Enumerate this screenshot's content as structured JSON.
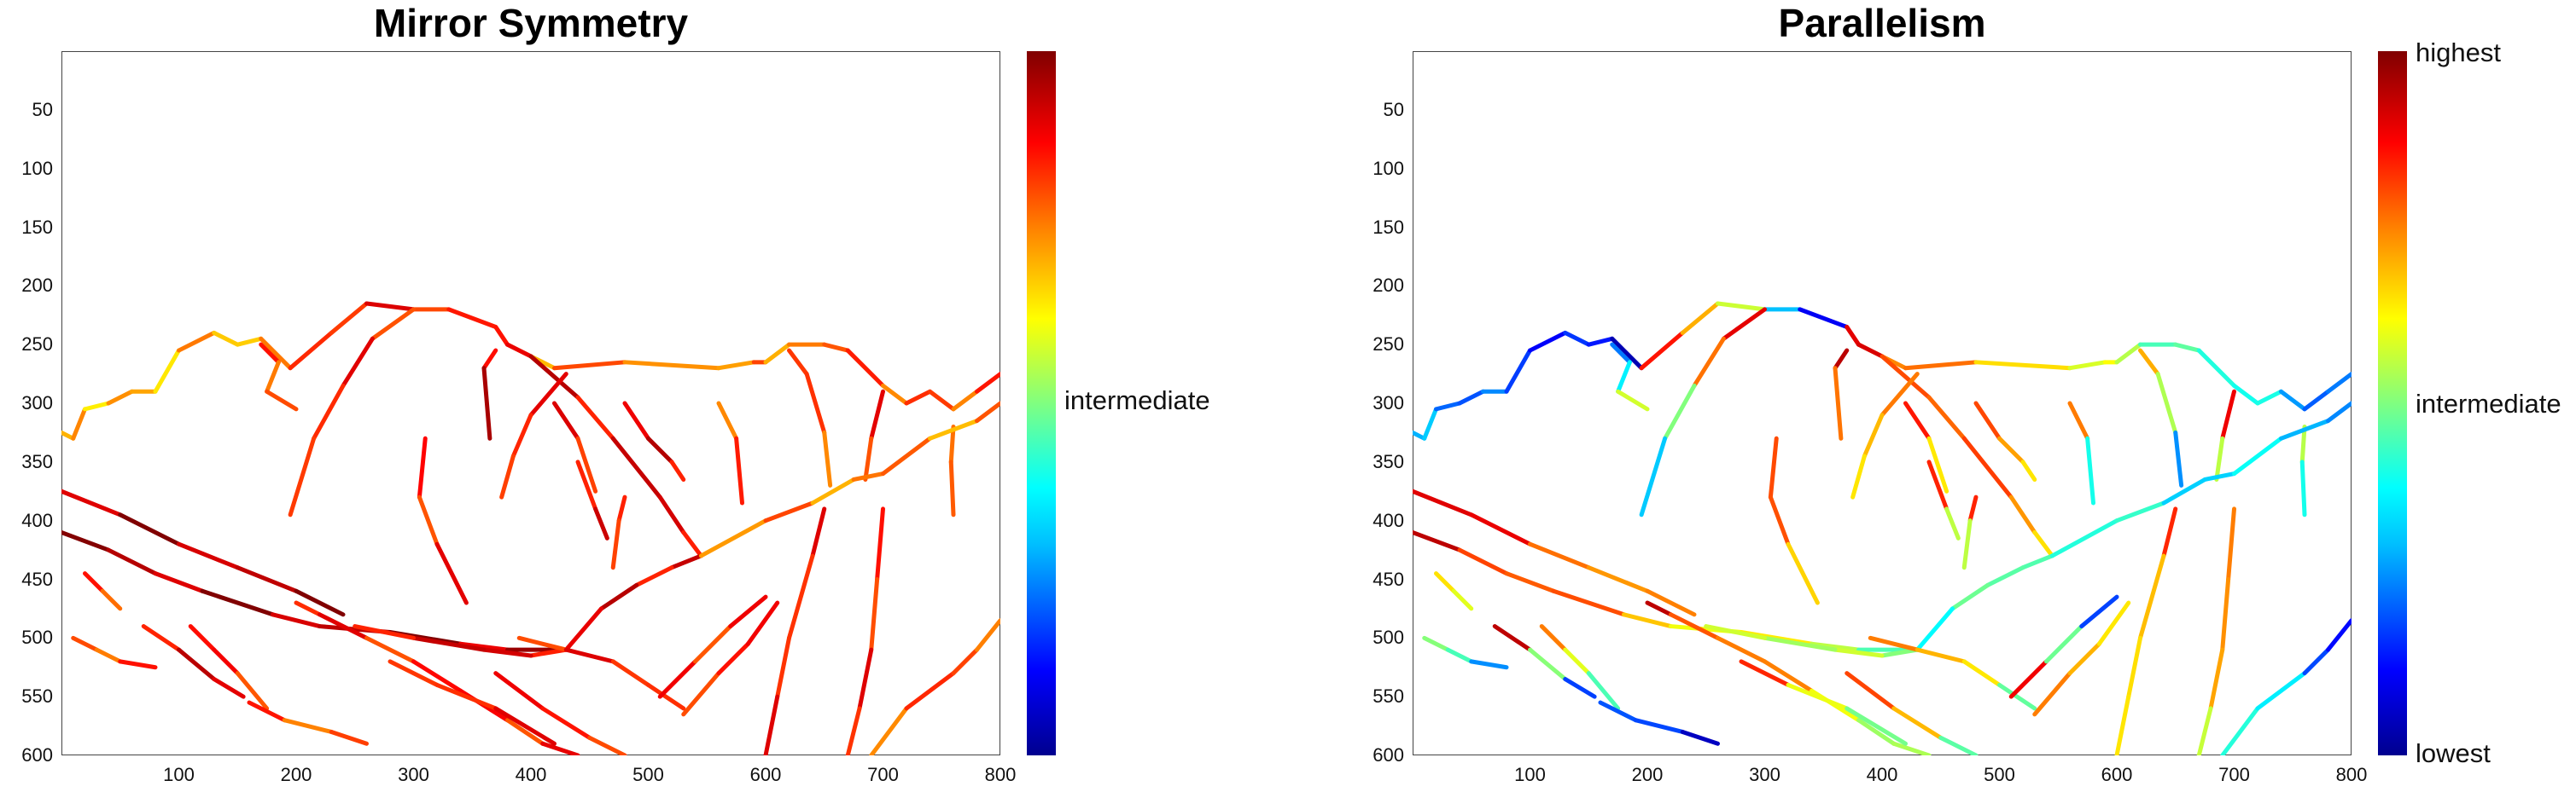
{
  "chart_data": [
    {
      "type": "line",
      "title": "Mirror Symmetry",
      "xlim": [
        0,
        800
      ],
      "ylim": [
        0,
        600
      ],
      "y_reversed": true,
      "x_ticks": [
        100,
        200,
        300,
        400,
        500,
        600,
        700,
        800
      ],
      "y_ticks": [
        50,
        100,
        150,
        200,
        250,
        300,
        350,
        400,
        450,
        500,
        550,
        600
      ],
      "colorbar": {
        "colormap": "jet",
        "labels": [
          "intermediate"
        ]
      },
      "grid": false
    },
    {
      "type": "line",
      "title": "Parallelism",
      "xlim": [
        0,
        800
      ],
      "ylim": [
        0,
        600
      ],
      "y_reversed": true,
      "x_ticks": [
        100,
        200,
        300,
        400,
        500,
        600,
        700,
        800
      ],
      "y_ticks": [
        50,
        100,
        150,
        200,
        250,
        300,
        350,
        400,
        450,
        500,
        550,
        600
      ],
      "colorbar": {
        "colormap": "jet",
        "labels": [
          "highest",
          "intermediate",
          "lowest"
        ]
      },
      "grid": false
    }
  ],
  "contours": [
    {
      "pts": [
        [
          0,
          325
        ],
        [
          10,
          330
        ],
        [
          20,
          305
        ],
        [
          40,
          300
        ],
        [
          60,
          290
        ],
        [
          80,
          290
        ],
        [
          100,
          255
        ],
        [
          130,
          240
        ],
        [
          150,
          250
        ],
        [
          170,
          245
        ],
        [
          195,
          270
        ]
      ],
      "c1": 0.7,
      "c2": [
        0.3,
        0.1
      ]
    },
    {
      "pts": [
        [
          170,
          250
        ],
        [
          185,
          265
        ],
        [
          175,
          290
        ],
        [
          200,
          305
        ]
      ],
      "c1": 0.8,
      "c2": [
        0.2,
        0.6
      ]
    },
    {
      "pts": [
        [
          195,
          270
        ],
        [
          230,
          240
        ],
        [
          260,
          215
        ],
        [
          300,
          220
        ],
        [
          330,
          220
        ],
        [
          370,
          235
        ]
      ],
      "c1": 0.85,
      "c2": [
        0.9,
        0.15
      ]
    },
    {
      "pts": [
        [
          300,
          220
        ],
        [
          265,
          245
        ],
        [
          240,
          285
        ],
        [
          215,
          330
        ],
        [
          195,
          395
        ]
      ],
      "c1": 0.85,
      "c2": [
        0.9,
        0.35
      ]
    },
    {
      "pts": [
        [
          370,
          235
        ],
        [
          380,
          250
        ],
        [
          400,
          260
        ],
        [
          420,
          270
        ],
        [
          480,
          265
        ],
        [
          560,
          270
        ],
        [
          590,
          265
        ],
        [
          600,
          265
        ],
        [
          620,
          250
        ],
        [
          650,
          250
        ],
        [
          670,
          255
        ]
      ],
      "c1": 0.75,
      "c2": [
        0.85,
        0.45
      ]
    },
    {
      "pts": [
        [
          670,
          255
        ],
        [
          700,
          285
        ],
        [
          720,
          300
        ],
        [
          740,
          290
        ],
        [
          760,
          305
        ],
        [
          780,
          290
        ],
        [
          800,
          275
        ]
      ],
      "c1": 0.8,
      "c2": [
        0.45,
        0.2
      ]
    },
    {
      "pts": [
        [
          370,
          235
        ],
        [
          380,
          250
        ],
        [
          400,
          260
        ],
        [
          440,
          295
        ],
        [
          470,
          330
        ],
        [
          510,
          380
        ],
        [
          530,
          410
        ],
        [
          545,
          430
        ]
      ],
      "c1": 0.9,
      "c2": [
        0.9,
        0.7
      ]
    },
    {
      "pts": [
        [
          370,
          255
        ],
        [
          360,
          270
        ],
        [
          365,
          330
        ]
      ],
      "c1": 0.9,
      "c2": [
        0.9,
        0.8
      ]
    },
    {
      "pts": [
        [
          430,
          275
        ],
        [
          400,
          310
        ],
        [
          385,
          345
        ],
        [
          375,
          380
        ]
      ],
      "c1": 0.85,
      "c2": [
        0.8,
        0.6
      ]
    },
    {
      "pts": [
        [
          310,
          330
        ],
        [
          305,
          380
        ],
        [
          320,
          420
        ],
        [
          345,
          470
        ]
      ],
      "c1": 0.85,
      "c2": [
        0.8,
        0.7
      ]
    },
    {
      "pts": [
        [
          440,
          350
        ],
        [
          455,
          390
        ],
        [
          465,
          415
        ]
      ],
      "c1": 0.9,
      "c2": [
        0.8,
        0.6
      ]
    },
    {
      "pts": [
        [
          480,
          300
        ],
        [
          500,
          330
        ],
        [
          520,
          350
        ],
        [
          530,
          365
        ]
      ],
      "c1": 0.9,
      "c2": [
        0.85,
        0.6
      ]
    },
    {
      "pts": [
        [
          420,
          300
        ],
        [
          440,
          330
        ],
        [
          455,
          375
        ]
      ],
      "c1": 0.85,
      "c2": [
        0.85,
        0.6
      ]
    },
    {
      "pts": [
        [
          480,
          380
        ],
        [
          475,
          400
        ],
        [
          470,
          440
        ]
      ],
      "c1": 0.85,
      "c2": [
        0.8,
        0.6
      ]
    },
    {
      "pts": [
        [
          560,
          300
        ],
        [
          575,
          330
        ],
        [
          580,
          385
        ]
      ],
      "c1": 0.8,
      "c2": [
        0.8,
        0.4
      ]
    },
    {
      "pts": [
        [
          620,
          255
        ],
        [
          635,
          275
        ],
        [
          650,
          325
        ],
        [
          655,
          370
        ]
      ],
      "c1": 0.8,
      "c2": [
        0.7,
        0.3
      ]
    },
    {
      "pts": [
        [
          700,
          290
        ],
        [
          690,
          330
        ],
        [
          685,
          365
        ]
      ],
      "c1": 0.85,
      "c2": [
        0.85,
        0.6
      ]
    },
    {
      "pts": [
        [
          760,
          320
        ],
        [
          758,
          350
        ],
        [
          760,
          395
        ]
      ],
      "c1": 0.8,
      "c2": [
        0.6,
        0.4
      ]
    },
    {
      "pts": [
        [
          0,
          375
        ],
        [
          50,
          395
        ],
        [
          100,
          420
        ],
        [
          150,
          440
        ],
        [
          200,
          460
        ],
        [
          240,
          480
        ]
      ],
      "c1": 0.95,
      "c2": [
        0.9,
        0.7
      ]
    },
    {
      "pts": [
        [
          0,
          410
        ],
        [
          40,
          425
        ],
        [
          80,
          445
        ],
        [
          120,
          460
        ],
        [
          180,
          480
        ],
        [
          220,
          490
        ],
        [
          280,
          495
        ],
        [
          340,
          505
        ],
        [
          380,
          510
        ],
        [
          430,
          510
        ]
      ],
      "c1": 0.95,
      "c2": [
        0.9,
        0.5
      ]
    },
    {
      "pts": [
        [
          545,
          430
        ],
        [
          520,
          440
        ],
        [
          490,
          455
        ],
        [
          460,
          475
        ],
        [
          430,
          510
        ]
      ],
      "c1": 0.9,
      "c2": [
        0.5,
        0.4
      ]
    },
    {
      "pts": [
        [
          430,
          510
        ],
        [
          400,
          515
        ],
        [
          360,
          510
        ],
        [
          300,
          500
        ],
        [
          250,
          490
        ]
      ],
      "c1": 0.9,
      "c2": [
        0.5,
        0.6
      ]
    },
    {
      "pts": [
        [
          200,
          470
        ],
        [
          220,
          480
        ],
        [
          260,
          500
        ],
        [
          300,
          520
        ],
        [
          340,
          545
        ],
        [
          380,
          570
        ],
        [
          410,
          590
        ],
        [
          440,
          600
        ]
      ],
      "c1": 0.85,
      "c2": [
        0.9,
        0.5
      ]
    },
    {
      "pts": [
        [
          20,
          445
        ],
        [
          35,
          460
        ],
        [
          50,
          475
        ]
      ],
      "c1": 0.8,
      "c2": [
        0.7,
        0.6
      ]
    },
    {
      "pts": [
        [
          10,
          500
        ],
        [
          30,
          510
        ],
        [
          50,
          520
        ],
        [
          80,
          525
        ]
      ],
      "c1": 0.8,
      "c2": [
        0.5,
        0.3
      ]
    },
    {
      "pts": [
        [
          70,
          490
        ],
        [
          100,
          510
        ],
        [
          130,
          535
        ],
        [
          155,
          550
        ]
      ],
      "c1": 0.9,
      "c2": [
        0.9,
        0.2
      ]
    },
    {
      "pts": [
        [
          110,
          490
        ],
        [
          130,
          510
        ],
        [
          150,
          530
        ],
        [
          175,
          560
        ]
      ],
      "c1": 0.85,
      "c2": [
        0.8,
        0.4
      ]
    },
    {
      "pts": [
        [
          160,
          555
        ],
        [
          190,
          570
        ],
        [
          230,
          580
        ],
        [
          260,
          590
        ]
      ],
      "c1": 0.8,
      "c2": [
        0.2,
        0.1
      ]
    },
    {
      "pts": [
        [
          280,
          520
        ],
        [
          320,
          540
        ],
        [
          370,
          560
        ],
        [
          420,
          590
        ]
      ],
      "c1": 0.85,
      "c2": [
        0.8,
        0.5
      ]
    },
    {
      "pts": [
        [
          390,
          500
        ],
        [
          430,
          510
        ],
        [
          470,
          520
        ],
        [
          500,
          540
        ],
        [
          530,
          560
        ]
      ],
      "c1": 0.85,
      "c2": [
        0.8,
        0.5
      ]
    },
    {
      "pts": [
        [
          370,
          530
        ],
        [
          410,
          560
        ],
        [
          450,
          585
        ],
        [
          480,
          600
        ]
      ],
      "c1": 0.85,
      "c2": [
        0.8,
        0.5
      ]
    },
    {
      "pts": [
        [
          510,
          550
        ],
        [
          540,
          520
        ],
        [
          570,
          490
        ],
        [
          600,
          465
        ]
      ],
      "c1": 0.85,
      "c2": [
        0.85,
        0.2
      ]
    },
    {
      "pts": [
        [
          530,
          565
        ],
        [
          560,
          530
        ],
        [
          585,
          505
        ],
        [
          610,
          470
        ]
      ],
      "c1": 0.85,
      "c2": [
        0.8,
        0.6
      ]
    },
    {
      "pts": [
        [
          545,
          430
        ],
        [
          600,
          400
        ],
        [
          640,
          385
        ],
        [
          675,
          365
        ],
        [
          700,
          360
        ],
        [
          740,
          330
        ],
        [
          780,
          315
        ],
        [
          800,
          300
        ]
      ],
      "c1": 0.75,
      "c2": [
        0.4,
        0.3
      ]
    },
    {
      "pts": [
        [
          650,
          390
        ],
        [
          640,
          430
        ],
        [
          620,
          500
        ],
        [
          610,
          550
        ],
        [
          600,
          600
        ]
      ],
      "c1": 0.85,
      "c2": [
        0.8,
        0.6
      ]
    },
    {
      "pts": [
        [
          700,
          390
        ],
        [
          695,
          450
        ],
        [
          690,
          510
        ],
        [
          680,
          560
        ],
        [
          670,
          600
        ]
      ],
      "c1": 0.85,
      "c2": [
        0.8,
        0.6
      ]
    },
    {
      "pts": [
        [
          690,
          600
        ],
        [
          720,
          560
        ],
        [
          760,
          530
        ],
        [
          780,
          510
        ],
        [
          800,
          485
        ]
      ],
      "c1": 0.8,
      "c2": [
        0.4,
        0.15
      ]
    }
  ]
}
